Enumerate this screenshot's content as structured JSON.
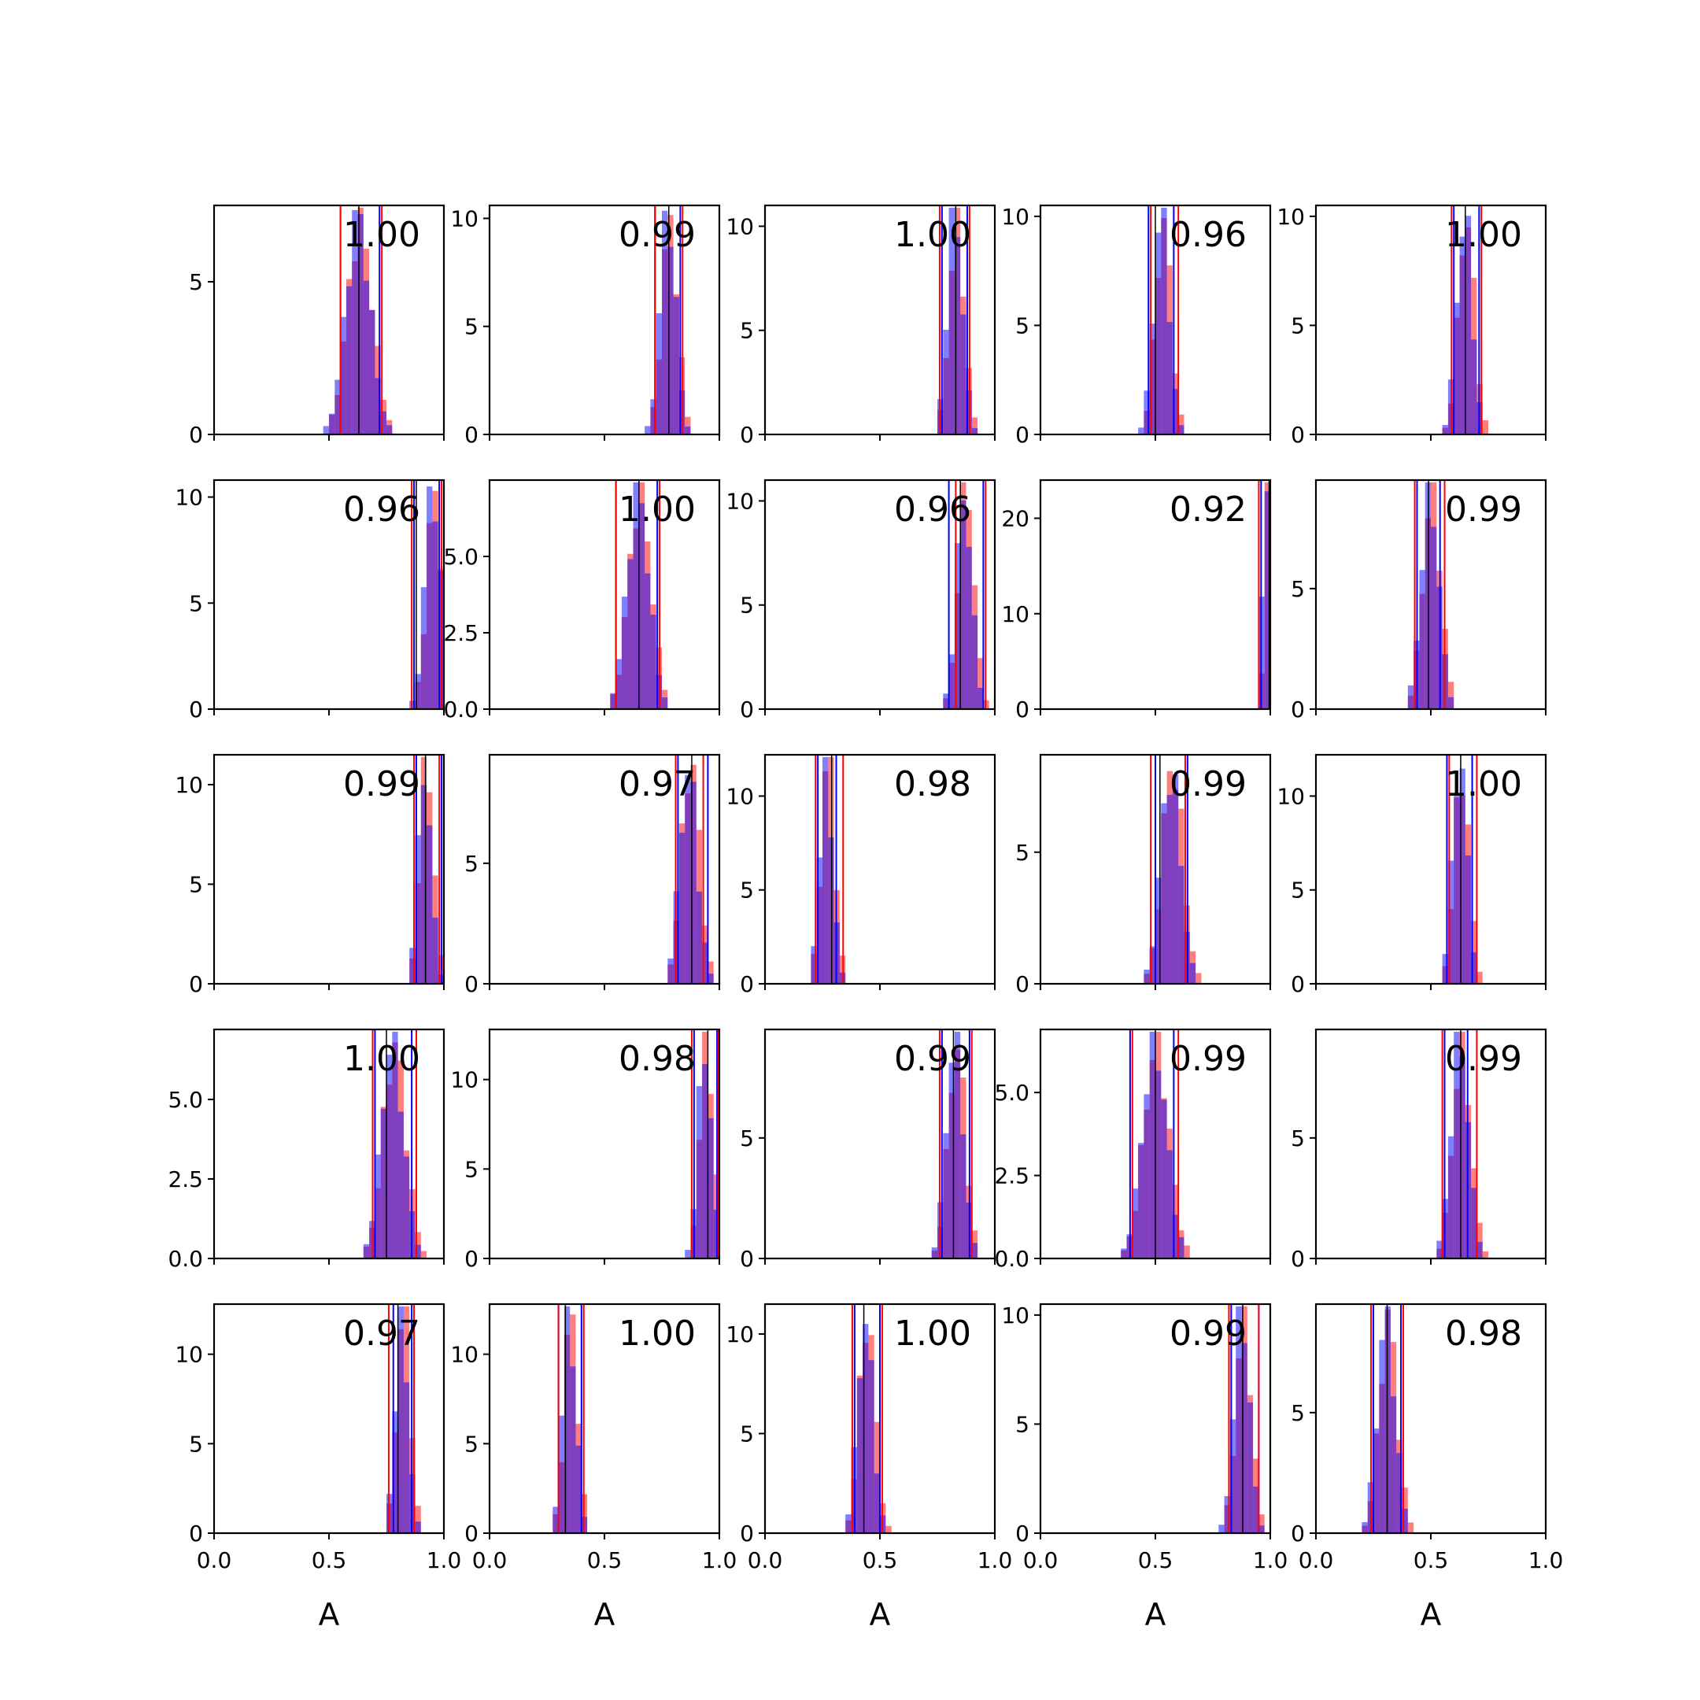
{
  "chart_data": {
    "type": "histogram-grid",
    "rows": 5,
    "cols": 5,
    "xlim": [
      0,
      1
    ],
    "xticks": [
      0,
      0.5,
      1
    ],
    "xtick_labels": [
      "0.0",
      "0.5",
      "1.0"
    ],
    "xlabel": "A",
    "colors": {
      "hist_a": "#ff0000",
      "hist_b": "#0000ff",
      "overlap": "#7f3fbf",
      "true_line": "#000000"
    },
    "series_opacity": 0.5,
    "panels": [
      {
        "row": 0,
        "col": 0,
        "label": "1.00",
        "ymax": 7.5,
        "yticks": [
          0,
          5
        ],
        "ytick_labels": [
          "0",
          "5"
        ],
        "center": 0.63,
        "sd": 0.055,
        "vlines_a": [
          0.55,
          0.73
        ],
        "vlines_b": [
          0.55,
          0.72
        ],
        "true": 0.63
      },
      {
        "row": 0,
        "col": 1,
        "label": "0.99",
        "ymax": 10.6,
        "yticks": [
          0,
          5,
          10
        ],
        "ytick_labels": [
          "0",
          "5",
          "10"
        ],
        "center": 0.78,
        "sd": 0.035,
        "vlines_a": [
          0.72,
          0.84
        ],
        "vlines_b": [
          0.72,
          0.83
        ],
        "true": 0.78
      },
      {
        "row": 0,
        "col": 2,
        "label": "1.00",
        "ymax": 11,
        "yticks": [
          0,
          5,
          10
        ],
        "ytick_labels": [
          "0",
          "5",
          "10"
        ],
        "center": 0.83,
        "sd": 0.034,
        "vlines_a": [
          0.76,
          0.89
        ],
        "vlines_b": [
          0.77,
          0.88
        ],
        "true": 0.83
      },
      {
        "row": 0,
        "col": 3,
        "label": "0.96",
        "ymax": 10.5,
        "yticks": [
          0,
          5,
          10
        ],
        "ytick_labels": [
          "0",
          "5",
          "10"
        ],
        "center": 0.53,
        "sd": 0.035,
        "vlines_a": [
          0.48,
          0.6
        ],
        "vlines_b": [
          0.47,
          0.58
        ],
        "true": 0.5
      },
      {
        "row": 0,
        "col": 4,
        "label": "1.00",
        "ymax": 10.5,
        "yticks": [
          0,
          5,
          10
        ],
        "ytick_labels": [
          "0",
          "5",
          "10"
        ],
        "center": 0.65,
        "sd": 0.035,
        "vlines_a": [
          0.59,
          0.72
        ],
        "vlines_b": [
          0.6,
          0.71
        ],
        "true": 0.65
      },
      {
        "row": 1,
        "col": 0,
        "label": "0.96",
        "ymax": 10.8,
        "yticks": [
          0,
          5,
          10
        ],
        "ytick_labels": [
          "0",
          "5",
          "10"
        ],
        "center": 0.955,
        "sd": 0.035,
        "vlines_a": [
          0.86,
          0.99
        ],
        "vlines_b": [
          0.87,
          0.98
        ],
        "true": 0.88
      },
      {
        "row": 1,
        "col": 1,
        "label": "1.00",
        "ymax": 7.5,
        "yticks": [
          0,
          2.5,
          5
        ],
        "ytick_labels": [
          "0.0",
          "2.5",
          "5.0"
        ],
        "center": 0.65,
        "sd": 0.05,
        "vlines_a": [
          0.55,
          0.74
        ],
        "vlines_b": [
          0.55,
          0.73
        ],
        "true": 0.65
      },
      {
        "row": 1,
        "col": 2,
        "label": "0.96",
        "ymax": 11,
        "yticks": [
          0,
          5,
          10
        ],
        "ytick_labels": [
          "0",
          "5",
          "10"
        ],
        "center": 0.87,
        "sd": 0.035,
        "vlines_a": [
          0.83,
          0.96
        ],
        "vlines_b": [
          0.8,
          0.95
        ],
        "true": 0.85
      },
      {
        "row": 1,
        "col": 3,
        "label": "0.92",
        "ymax": 24,
        "yticks": [
          0,
          10,
          20
        ],
        "ytick_labels": [
          "0",
          "10",
          "20"
        ],
        "center": 0.985,
        "sd": 0.015,
        "vlines_a": [
          0.95,
          0.998
        ],
        "vlines_b": [
          0.96,
          0.998
        ],
        "true": 0.995
      },
      {
        "row": 1,
        "col": 4,
        "label": "0.99",
        "ymax": 9.5,
        "yticks": [
          0,
          5
        ],
        "ytick_labels": [
          "0",
          "5"
        ],
        "center": 0.5,
        "sd": 0.04,
        "vlines_a": [
          0.43,
          0.56
        ],
        "vlines_b": [
          0.44,
          0.54
        ],
        "true": 0.49
      },
      {
        "row": 2,
        "col": 0,
        "label": "0.99",
        "ymax": 11.5,
        "yticks": [
          0,
          5,
          10
        ],
        "ytick_labels": [
          "0",
          "5",
          "10"
        ],
        "center": 0.92,
        "sd": 0.03,
        "vlines_a": [
          0.87,
          0.98
        ],
        "vlines_b": [
          0.88,
          0.99
        ],
        "true": 0.92
      },
      {
        "row": 2,
        "col": 1,
        "label": "0.97",
        "ymax": 9.5,
        "yticks": [
          0,
          5
        ],
        "ytick_labels": [
          "0",
          "5"
        ],
        "center": 0.87,
        "sd": 0.04,
        "vlines_a": [
          0.81,
          0.93
        ],
        "vlines_b": [
          0.82,
          0.95
        ],
        "true": 0.88
      },
      {
        "row": 2,
        "col": 2,
        "label": "0.98",
        "ymax": 12.2,
        "yticks": [
          0,
          5,
          10
        ],
        "ytick_labels": [
          "0",
          "5",
          "10"
        ],
        "center": 0.27,
        "sd": 0.03,
        "vlines_a": [
          0.22,
          0.34
        ],
        "vlines_b": [
          0.23,
          0.31
        ],
        "true": 0.29
      },
      {
        "row": 2,
        "col": 3,
        "label": "0.99",
        "ymax": 8.7,
        "yticks": [
          0,
          5
        ],
        "ytick_labels": [
          "0",
          "5"
        ],
        "center": 0.57,
        "sd": 0.045,
        "vlines_a": [
          0.48,
          0.63
        ],
        "vlines_b": [
          0.5,
          0.64
        ],
        "true": 0.52
      },
      {
        "row": 2,
        "col": 4,
        "label": "1.00",
        "ymax": 12.2,
        "yticks": [
          0,
          5,
          10
        ],
        "ytick_labels": [
          "0",
          "5",
          "10"
        ],
        "center": 0.63,
        "sd": 0.033,
        "vlines_a": [
          0.58,
          0.7
        ],
        "vlines_b": [
          0.57,
          0.68
        ],
        "true": 0.63
      },
      {
        "row": 3,
        "col": 0,
        "label": "1.00",
        "ymax": 7.2,
        "yticks": [
          0,
          2.5,
          5
        ],
        "ytick_labels": [
          "0.0",
          "2.5",
          "5.0"
        ],
        "center": 0.78,
        "sd": 0.05,
        "vlines_a": [
          0.69,
          0.88
        ],
        "vlines_b": [
          0.7,
          0.86
        ],
        "true": 0.75
      },
      {
        "row": 3,
        "col": 1,
        "label": "0.98",
        "ymax": 12.8,
        "yticks": [
          0,
          5,
          10
        ],
        "ytick_labels": [
          "0",
          "5",
          "10"
        ],
        "center": 0.94,
        "sd": 0.03,
        "vlines_a": [
          0.88,
          0.995
        ],
        "vlines_b": [
          0.89,
          0.99
        ],
        "true": 0.95
      },
      {
        "row": 3,
        "col": 2,
        "label": "0.99",
        "ymax": 9.5,
        "yticks": [
          0,
          5
        ],
        "ytick_labels": [
          "0",
          "5"
        ],
        "center": 0.83,
        "sd": 0.038,
        "vlines_a": [
          0.76,
          0.9
        ],
        "vlines_b": [
          0.77,
          0.89
        ],
        "true": 0.82
      },
      {
        "row": 3,
        "col": 3,
        "label": "0.99",
        "ymax": 6.9,
        "yticks": [
          0,
          2.5,
          5
        ],
        "ytick_labels": [
          "0.0",
          "2.5",
          "5.0"
        ],
        "center": 0.5,
        "sd": 0.055,
        "vlines_a": [
          0.4,
          0.6
        ],
        "vlines_b": [
          0.39,
          0.58
        ],
        "true": 0.5
      },
      {
        "row": 3,
        "col": 4,
        "label": "0.99",
        "ymax": 9.5,
        "yticks": [
          0,
          5
        ],
        "ytick_labels": [
          "0",
          "5"
        ],
        "center": 0.63,
        "sd": 0.04,
        "vlines_a": [
          0.55,
          0.7
        ],
        "vlines_b": [
          0.56,
          0.66
        ],
        "true": 0.63
      },
      {
        "row": 4,
        "col": 0,
        "label": "0.97",
        "ymax": 12.8,
        "yticks": [
          0,
          5,
          10
        ],
        "ytick_labels": [
          "0",
          "5",
          "10"
        ],
        "center": 0.82,
        "sd": 0.03,
        "vlines_a": [
          0.76,
          0.87
        ],
        "vlines_b": [
          0.78,
          0.86
        ],
        "true": 0.8
      },
      {
        "row": 4,
        "col": 1,
        "label": "1.00",
        "ymax": 12.8,
        "yticks": [
          0,
          5,
          10
        ],
        "ytick_labels": [
          "0",
          "5",
          "10"
        ],
        "center": 0.35,
        "sd": 0.03,
        "vlines_a": [
          0.3,
          0.41
        ],
        "vlines_b": [
          0.3,
          0.4
        ],
        "true": 0.33
      },
      {
        "row": 4,
        "col": 2,
        "label": "1.00",
        "ymax": 11.5,
        "yticks": [
          0,
          5,
          10
        ],
        "ytick_labels": [
          "0",
          "5",
          "10"
        ],
        "center": 0.44,
        "sd": 0.035,
        "vlines_a": [
          0.38,
          0.51
        ],
        "vlines_b": [
          0.39,
          0.5
        ],
        "true": 0.43
      },
      {
        "row": 4,
        "col": 3,
        "label": "0.99",
        "ymax": 10.5,
        "yticks": [
          0,
          5,
          10
        ],
        "ytick_labels": [
          "0",
          "5",
          "10"
        ],
        "center": 0.88,
        "sd": 0.035,
        "vlines_a": [
          0.82,
          0.95
        ],
        "vlines_b": [
          0.83,
          0.95
        ],
        "true": 0.88
      },
      {
        "row": 4,
        "col": 4,
        "label": "0.98",
        "ymax": 9.5,
        "yticks": [
          0,
          5
        ],
        "ytick_labels": [
          "0",
          "5"
        ],
        "center": 0.31,
        "sd": 0.04,
        "vlines_a": [
          0.24,
          0.38
        ],
        "vlines_b": [
          0.25,
          0.37
        ],
        "true": 0.31
      }
    ]
  }
}
